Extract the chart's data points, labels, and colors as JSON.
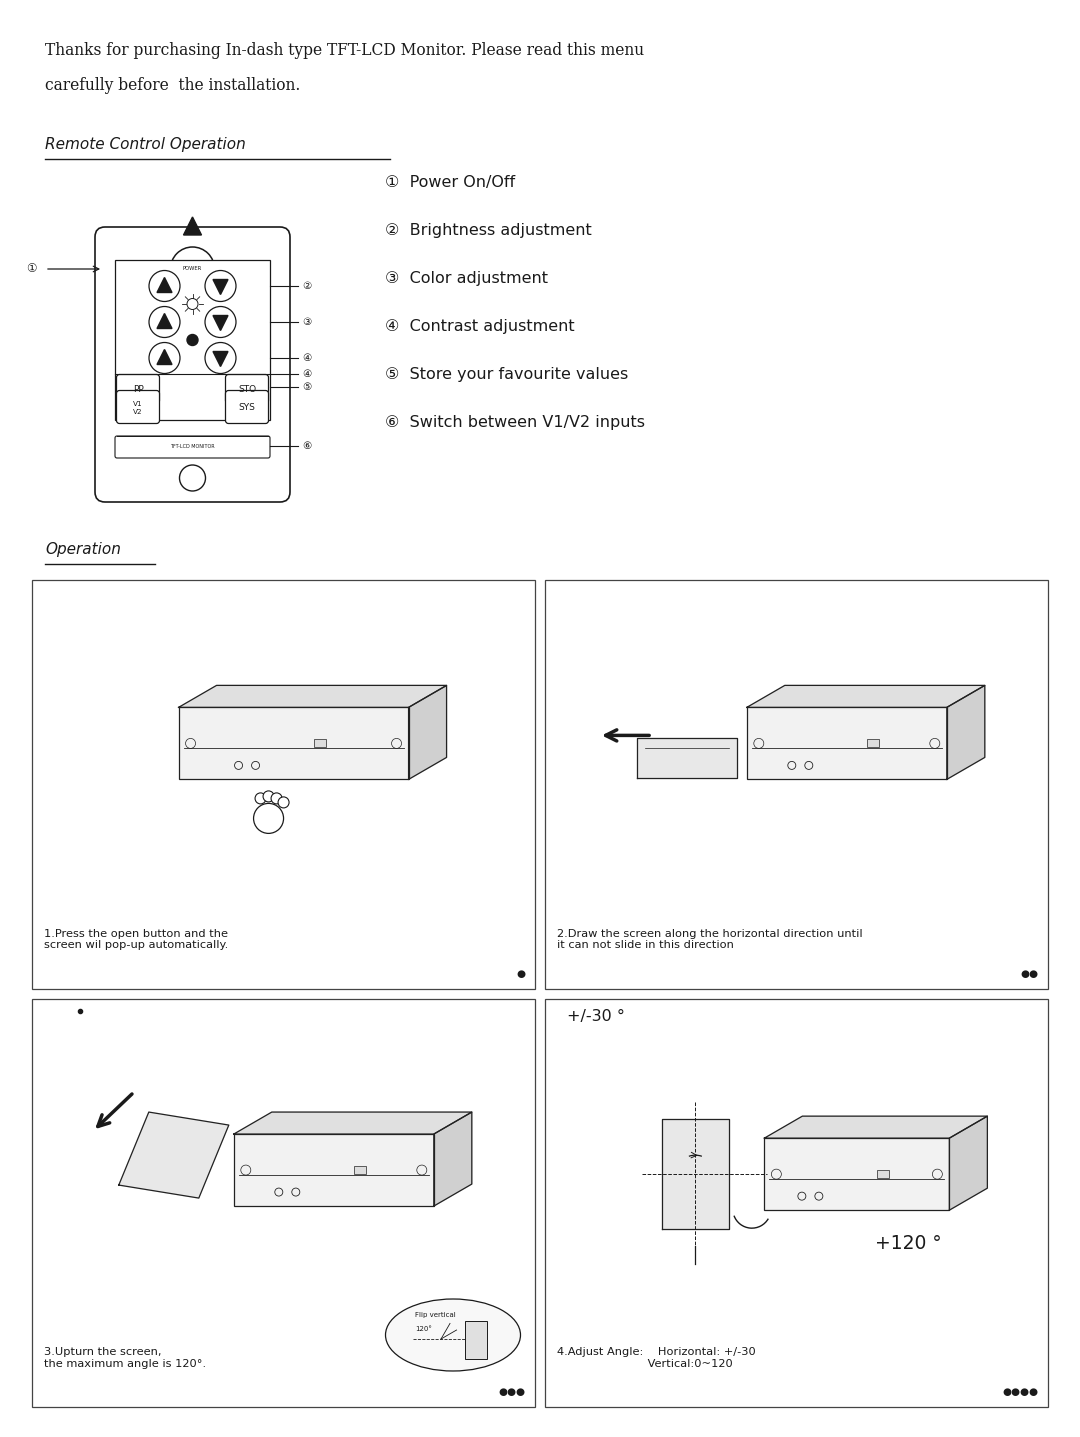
{
  "bg_color": "#ffffff",
  "text_color": "#1a1a1a",
  "intro_line1": "Thanks for purchasing In-dash type TFT-LCD Monitor. Please read this menu",
  "intro_line2": "carefully before  the installation.",
  "section1_title": "Remote Control Operation",
  "section2_title": "Operation",
  "items": [
    "①  Power On/Off",
    "②  Brightness adjustment",
    "③  Color adjustment",
    "④  Contrast adjustment",
    "⑤  Store your favourite values",
    "⑥  Switch between V1/V2 inputs"
  ],
  "op_captions": [
    "1.Press the open button and the\nscreen wil pop-up automatically.",
    "2.Draw the screen along the horizontal direction until\nit can not slide in this direction",
    "3.Upturn the screen,\nthe maximum angle is 120°.",
    "4.Adjust Angle:    Horizontal: +/-30\n                         Vertical:0~120"
  ],
  "op_dots": [
    "●",
    "●●",
    "●●●",
    "●●●●"
  ],
  "fig_w": 10.8,
  "fig_h": 14.37,
  "dpi": 100
}
